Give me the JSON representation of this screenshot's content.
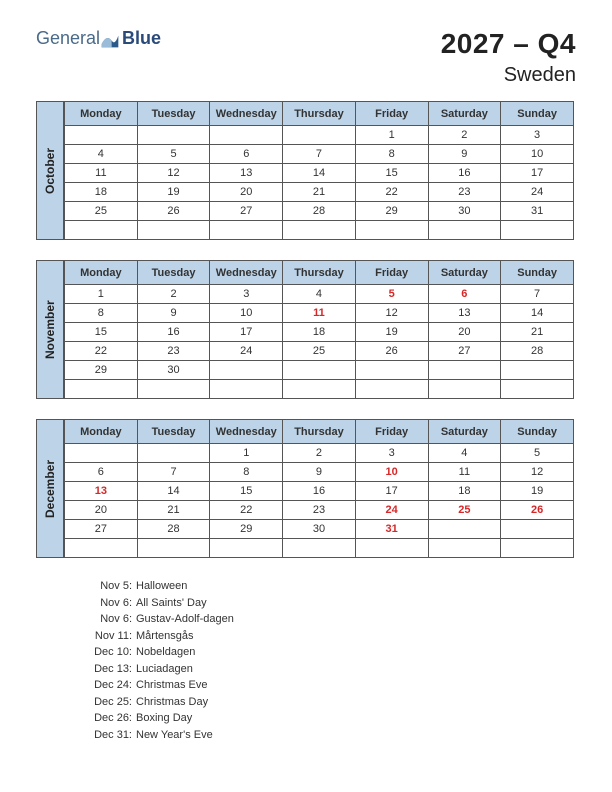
{
  "logo": {
    "text1": "General",
    "text2": "Blue"
  },
  "header": {
    "year_quarter": "2027 – Q4",
    "country": "Sweden"
  },
  "weekdays": [
    "Monday",
    "Tuesday",
    "Wednesday",
    "Thursday",
    "Friday",
    "Saturday",
    "Sunday"
  ],
  "colors": {
    "tab_bg": "#bcd3e8",
    "border": "#555555",
    "holiday_text": "#d62828",
    "page_bg": "#ffffff"
  },
  "months": [
    {
      "name": "October",
      "weeks": [
        [
          "",
          "",
          "",
          "",
          "1",
          "2",
          "3"
        ],
        [
          "4",
          "5",
          "6",
          "7",
          "8",
          "9",
          "10"
        ],
        [
          "11",
          "12",
          "13",
          "14",
          "15",
          "16",
          "17"
        ],
        [
          "18",
          "19",
          "20",
          "21",
          "22",
          "23",
          "24"
        ],
        [
          "25",
          "26",
          "27",
          "28",
          "29",
          "30",
          "31"
        ],
        [
          "",
          "",
          "",
          "",
          "",
          "",
          ""
        ]
      ],
      "red": []
    },
    {
      "name": "November",
      "weeks": [
        [
          "1",
          "2",
          "3",
          "4",
          "5",
          "6",
          "7"
        ],
        [
          "8",
          "9",
          "10",
          "11",
          "12",
          "13",
          "14"
        ],
        [
          "15",
          "16",
          "17",
          "18",
          "19",
          "20",
          "21"
        ],
        [
          "22",
          "23",
          "24",
          "25",
          "26",
          "27",
          "28"
        ],
        [
          "29",
          "30",
          "",
          "",
          "",
          "",
          ""
        ],
        [
          "",
          "",
          "",
          "",
          "",
          "",
          ""
        ]
      ],
      "red": [
        "5",
        "6",
        "11"
      ]
    },
    {
      "name": "December",
      "weeks": [
        [
          "",
          "",
          "1",
          "2",
          "3",
          "4",
          "5"
        ],
        [
          "6",
          "7",
          "8",
          "9",
          "10",
          "11",
          "12"
        ],
        [
          "13",
          "14",
          "15",
          "16",
          "17",
          "18",
          "19"
        ],
        [
          "20",
          "21",
          "22",
          "23",
          "24",
          "25",
          "26"
        ],
        [
          "27",
          "28",
          "29",
          "30",
          "31",
          "",
          ""
        ],
        [
          "",
          "",
          "",
          "",
          "",
          "",
          ""
        ]
      ],
      "red": [
        "10",
        "13",
        "24",
        "25",
        "26",
        "31"
      ]
    }
  ],
  "holidays": [
    {
      "date": "Nov 5:",
      "name": "Halloween"
    },
    {
      "date": "Nov 6:",
      "name": "All Saints' Day"
    },
    {
      "date": "Nov 6:",
      "name": "Gustav-Adolf-dagen"
    },
    {
      "date": "Nov 11:",
      "name": "Mårtensgås"
    },
    {
      "date": "Dec 10:",
      "name": "Nobeldagen"
    },
    {
      "date": "Dec 13:",
      "name": "Luciadagen"
    },
    {
      "date": "Dec 24:",
      "name": "Christmas Eve"
    },
    {
      "date": "Dec 25:",
      "name": "Christmas Day"
    },
    {
      "date": "Dec 26:",
      "name": "Boxing Day"
    },
    {
      "date": "Dec 31:",
      "name": "New Year's Eve"
    }
  ]
}
